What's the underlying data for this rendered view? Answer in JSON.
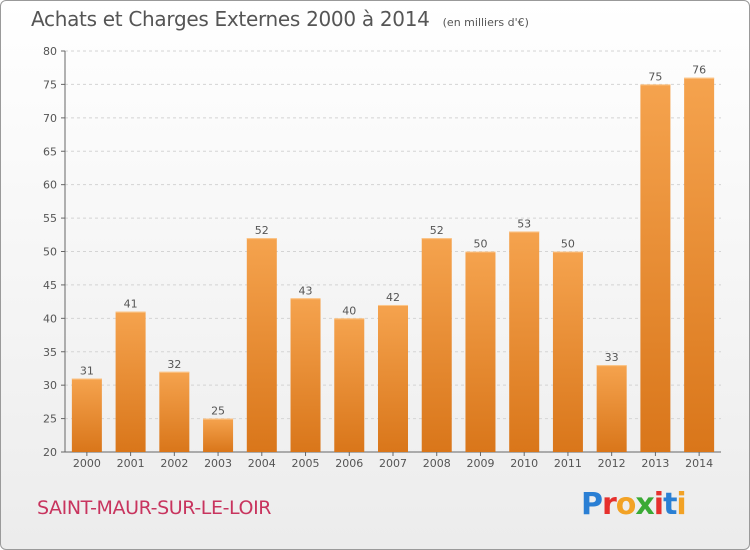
{
  "header": {
    "title": "Achats et Charges Externes 2000 à 2014",
    "unit": "(en milliers d'€)"
  },
  "footer": {
    "city": "SAINT-MAUR-SUR-LE-LOIR",
    "logo": "Proxiti"
  },
  "colors": {
    "bar_top": "#f5a34e",
    "bar_bottom": "#d9761a",
    "city": "#c8345e",
    "text": "#555555"
  },
  "chart_data": {
    "type": "bar",
    "title": "Achats et Charges Externes 2000 à 2014",
    "subtitle": "(en milliers d'€)",
    "categories": [
      "2000",
      "2001",
      "2002",
      "2003",
      "2004",
      "2005",
      "2006",
      "2007",
      "2008",
      "2009",
      "2010",
      "2011",
      "2012",
      "2013",
      "2014"
    ],
    "values": [
      31,
      41,
      32,
      25,
      52,
      43,
      40,
      42,
      52,
      50,
      53,
      50,
      33,
      75,
      76
    ],
    "ylim": [
      20,
      80
    ],
    "yticks": [
      20,
      25,
      30,
      35,
      40,
      45,
      50,
      55,
      60,
      65,
      70,
      75,
      80
    ],
    "grid": true,
    "data_labels": true
  }
}
